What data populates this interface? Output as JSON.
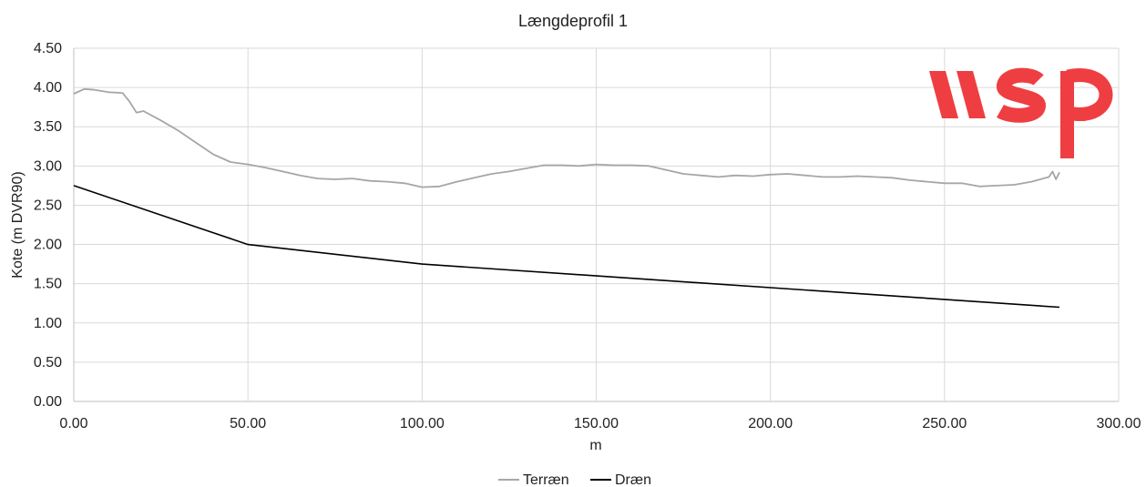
{
  "logo": {
    "text": "wsp",
    "color": "#ef3e42"
  },
  "chart_data": {
    "type": "line",
    "title": "Længdeprofil 1",
    "xlabel": "m",
    "ylabel": "Kote (m DVR90)",
    "xlim": [
      0,
      300
    ],
    "ylim": [
      0,
      4.5
    ],
    "x_ticks": [
      "0.00",
      "50.00",
      "100.00",
      "150.00",
      "200.00",
      "250.00",
      "300.00"
    ],
    "y_ticks": [
      "0.00",
      "0.50",
      "1.00",
      "1.50",
      "2.00",
      "2.50",
      "3.00",
      "3.50",
      "4.00",
      "4.50"
    ],
    "grid": true,
    "legend_position": "bottom",
    "series": [
      {
        "name": "Terræn",
        "color": "#a6a6a6",
        "x": [
          0,
          3,
          6,
          10,
          14,
          16,
          18,
          20,
          25,
          30,
          35,
          40,
          45,
          50,
          55,
          60,
          65,
          70,
          75,
          80,
          85,
          90,
          95,
          100,
          105,
          110,
          115,
          120,
          125,
          130,
          135,
          140,
          145,
          150,
          155,
          160,
          165,
          170,
          175,
          180,
          185,
          190,
          195,
          200,
          205,
          210,
          215,
          220,
          225,
          230,
          235,
          240,
          245,
          250,
          255,
          260,
          265,
          270,
          275,
          280,
          281,
          282,
          283
        ],
        "y": [
          3.92,
          3.98,
          3.97,
          3.94,
          3.93,
          3.82,
          3.68,
          3.7,
          3.58,
          3.45,
          3.3,
          3.15,
          3.05,
          3.02,
          2.98,
          2.93,
          2.88,
          2.84,
          2.83,
          2.84,
          2.81,
          2.8,
          2.78,
          2.73,
          2.74,
          2.8,
          2.85,
          2.9,
          2.93,
          2.97,
          3.01,
          3.01,
          3.0,
          3.02,
          3.01,
          3.01,
          3.0,
          2.95,
          2.9,
          2.88,
          2.86,
          2.88,
          2.87,
          2.89,
          2.9,
          2.88,
          2.86,
          2.86,
          2.87,
          2.86,
          2.85,
          2.82,
          2.8,
          2.78,
          2.78,
          2.74,
          2.75,
          2.76,
          2.8,
          2.86,
          2.93,
          2.83,
          2.92
        ]
      },
      {
        "name": "Dræn",
        "color": "#000000",
        "x": [
          0,
          50,
          100,
          283
        ],
        "y": [
          2.75,
          2.0,
          1.75,
          1.2
        ]
      }
    ]
  }
}
